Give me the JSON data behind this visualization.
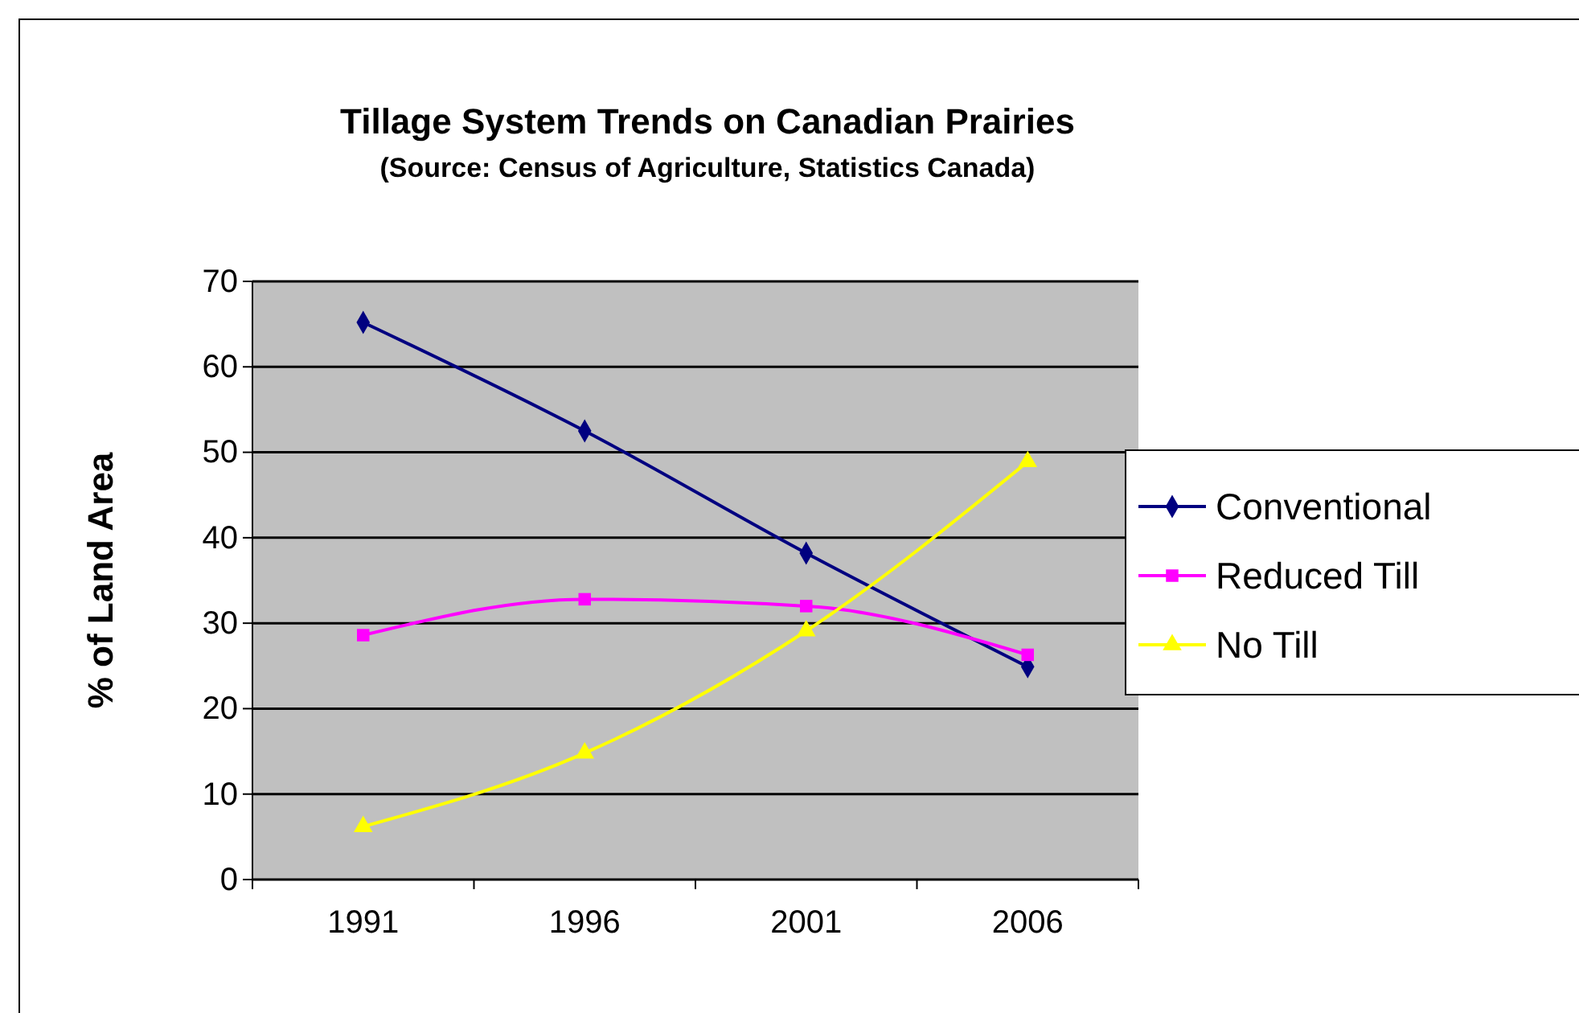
{
  "chart_data": {
    "type": "line",
    "title": "Tillage System Trends on Canadian Prairies",
    "subtitle": "(Source:  Census of Agriculture, Statistics Canada)",
    "ylabel": "% of Land Area",
    "categories": [
      "1991",
      "1996",
      "2001",
      "2006"
    ],
    "series": [
      {
        "name": "Conventional",
        "color": "#000080",
        "marker": "diamond",
        "values": [
          65.2,
          52.5,
          38.2,
          24.9
        ]
      },
      {
        "name": "Reduced Till",
        "color": "#ff00ff",
        "marker": "square",
        "values": [
          28.6,
          32.8,
          32,
          26.3
        ]
      },
      {
        "name": "No Till",
        "color": "#ffff00",
        "marker": "triangle",
        "values": [
          6.2,
          14.8,
          29.1,
          48.9
        ]
      }
    ],
    "ylim": [
      0,
      70
    ],
    "yticks": [
      0,
      10,
      20,
      30,
      40,
      50,
      60,
      70
    ],
    "grid": "y",
    "legend": "right"
  }
}
